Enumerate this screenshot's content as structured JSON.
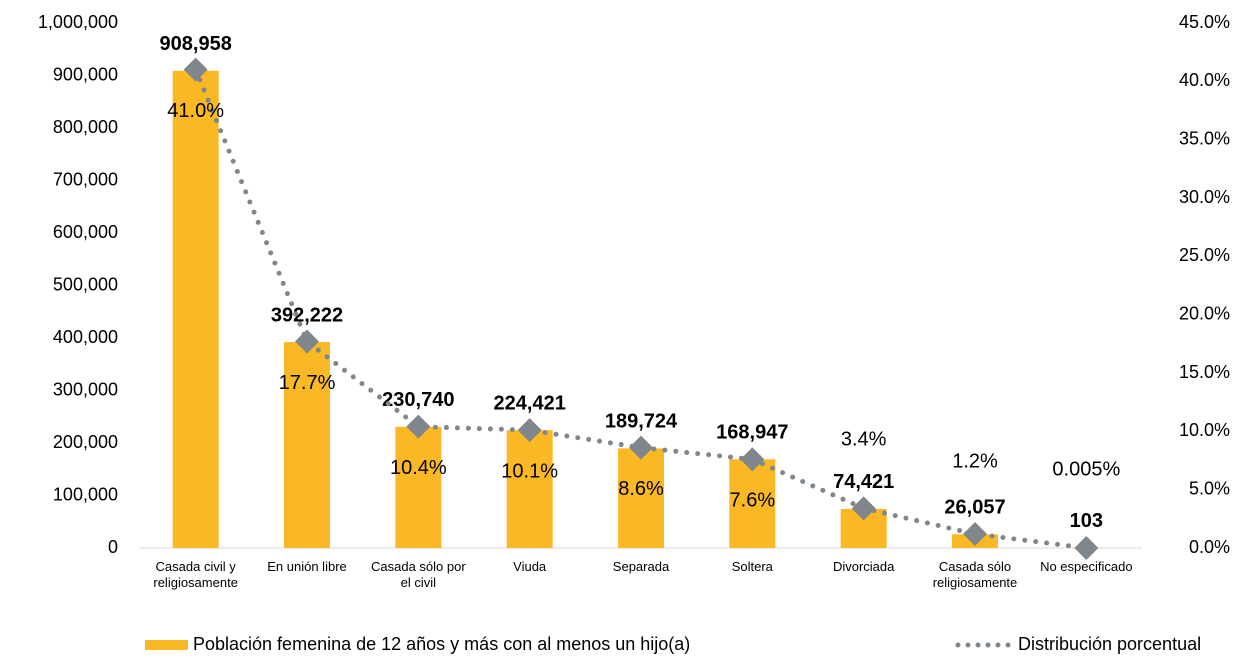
{
  "chart_data": {
    "type": "bar",
    "categories": [
      "Casada civil y religiosamente",
      "En unión libre",
      "Casada sólo por el civil",
      "Viuda",
      "Separada",
      "Soltera",
      "Divorciada",
      "Casada sólo religiosamente",
      "No especificado"
    ],
    "series": [
      {
        "name": "Población femenina de 12 años y más con al menos un hijo(a)",
        "type": "bar",
        "color": "#F9B824",
        "values": [
          908958,
          392222,
          230740,
          224421,
          189724,
          168947,
          74421,
          26057,
          103
        ],
        "value_labels": [
          "908,958",
          "392,222",
          "230,740",
          "224,421",
          "189,724",
          "168,947",
          "74,421",
          "26,057",
          "103"
        ]
      },
      {
        "name": "Distribución porcentual",
        "type": "line",
        "axis": "y2",
        "color": "#7F868C",
        "values": [
          41.0,
          17.7,
          10.4,
          10.1,
          8.6,
          7.6,
          3.4,
          1.2,
          0.005
        ],
        "value_labels": [
          "41.0%",
          "17.7%",
          "10.4%",
          "10.1%",
          "8.6%",
          "7.6%",
          "3.4%",
          "1.2%",
          "0.005%"
        ]
      }
    ],
    "ylim": [
      0,
      1000000
    ],
    "yticks": [
      0,
      {
        "value": 100000,
        "label": "100,000"
      },
      {
        "value": 200000,
        "label": "200,000"
      },
      {
        "value": 300000,
        "label": "300,000"
      },
      {
        "value": 400000,
        "label": "400,000"
      },
      {
        "value": 500000,
        "label": "500,000"
      },
      {
        "value": 600000,
        "label": "600,000"
      },
      {
        "value": 700000,
        "label": "700,000"
      },
      {
        "value": 800000,
        "label": "800,000"
      },
      {
        "value": 900000,
        "label": "900,000"
      },
      {
        "value": 1000000,
        "label": "1,000,000"
      }
    ],
    "y2lim": [
      0,
      45
    ],
    "y2ticks": [
      {
        "value": 0,
        "label": "0.0%"
      },
      {
        "value": 5,
        "label": "5.0%"
      },
      {
        "value": 10,
        "label": "10.0%"
      },
      {
        "value": 15,
        "label": "15.0%"
      },
      {
        "value": 20,
        "label": "20.0%"
      },
      {
        "value": 25,
        "label": "25.0%"
      },
      {
        "value": 30,
        "label": "30.0%"
      },
      {
        "value": 35,
        "label": "35.0%"
      },
      {
        "value": 40,
        "label": "40.0%"
      },
      {
        "value": 45,
        "label": "45.0%"
      }
    ],
    "grid": false,
    "legend": "bottom"
  }
}
